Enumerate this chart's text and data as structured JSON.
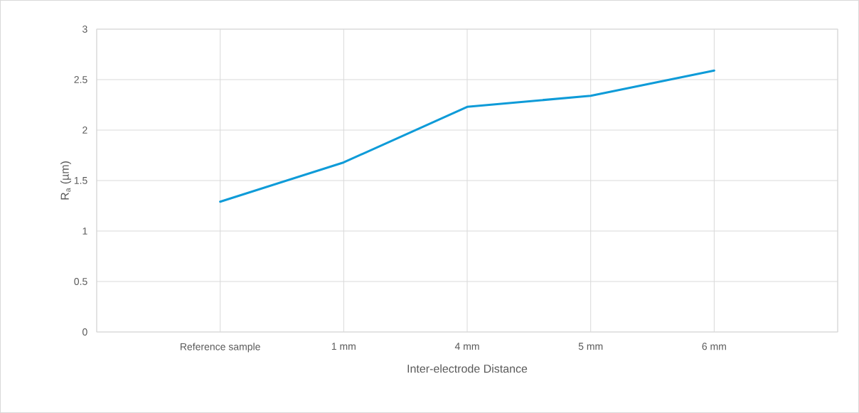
{
  "chart_data": {
    "type": "line",
    "xlabel": "Inter-electrode Distance",
    "ylabel": "R$_{a}$ (µm)",
    "categories": [
      "Reference sample",
      "1 mm",
      "4 mm",
      "5 mm",
      "6 mm"
    ],
    "series": [
      {
        "color": "#0e9bd8",
        "values": [
          1.29,
          1.68,
          2.23,
          2.34,
          2.59
        ]
      }
    ],
    "ylim": [
      0,
      3
    ],
    "yticks": [
      0,
      0.5,
      1,
      1.5,
      2,
      2.5,
      3
    ],
    "grid": true
  }
}
